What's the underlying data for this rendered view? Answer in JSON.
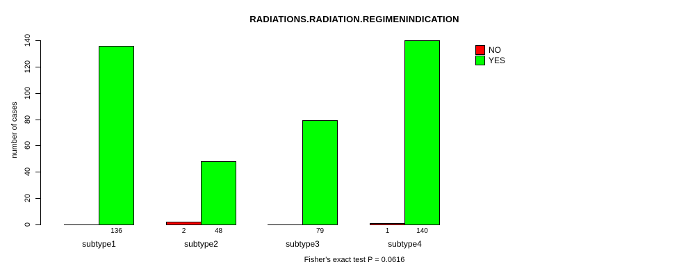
{
  "chart_data": {
    "type": "bar",
    "title": "RADIATIONS.RADIATION.REGIMENINDICATION",
    "ylabel": "number of cases",
    "xlabel": "",
    "categories": [
      "subtype1",
      "subtype2",
      "subtype3",
      "subtype4"
    ],
    "series": [
      {
        "name": "NO",
        "color": "#ff0000",
        "values": [
          0,
          2,
          0,
          1
        ]
      },
      {
        "name": "YES",
        "color": "#00ff00",
        "values": [
          136,
          48,
          79,
          140
        ]
      }
    ],
    "bar_value_labels": [
      [
        "",
        "2",
        "",
        "1"
      ],
      [
        "136",
        "48",
        "79",
        "140"
      ]
    ],
    "ylim": [
      0,
      140
    ],
    "yticks": [
      0,
      20,
      40,
      60,
      80,
      100,
      120,
      140
    ],
    "grid": false,
    "legend_position": "right",
    "caption": "Fisher's exact test P = 0.0616"
  }
}
